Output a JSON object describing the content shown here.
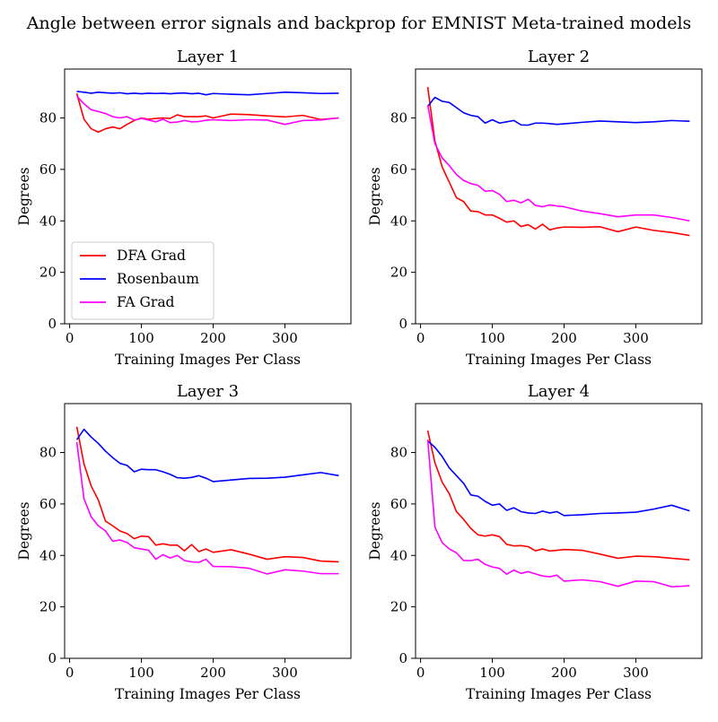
{
  "figure": {
    "suptitle": "Angle between error signals and backprop for EMNIST Meta-trained models"
  },
  "colors": {
    "DFA Grad": "#ff0000",
    "Rosenbaum": "#0000ff",
    "FA Grad": "#ff00ff"
  },
  "chart_data": [
    {
      "type": "line",
      "title": "Layer 1",
      "xlabel": "Training Images Per Class",
      "ylabel": "Degrees",
      "xlim": [
        -7,
        392
      ],
      "ylim": [
        0,
        99
      ],
      "xticks": [
        0,
        100,
        200,
        300
      ],
      "yticks": [
        0,
        20,
        40,
        60,
        80
      ],
      "grid": false,
      "legend": {
        "show": true,
        "placement": "lower-left"
      },
      "series": [
        {
          "name": "DFA Grad",
          "x": [
            10,
            20,
            30,
            40,
            50,
            60,
            70,
            80,
            90,
            100,
            110,
            120,
            130,
            140,
            150,
            160,
            170,
            180,
            190,
            200,
            225,
            250,
            275,
            300,
            325,
            350,
            375
          ],
          "y": [
            89.5,
            79.5,
            75.8,
            74.5,
            75.8,
            76.5,
            75.8,
            77.5,
            79.0,
            80.0,
            79.5,
            79.8,
            80.0,
            79.8,
            81.2,
            80.5,
            80.5,
            80.5,
            80.8,
            80.0,
            81.5,
            81.3,
            80.8,
            80.4,
            81.0,
            79.4,
            80.0
          ]
        },
        {
          "name": "Rosenbaum",
          "x": [
            10,
            20,
            30,
            40,
            50,
            60,
            70,
            80,
            90,
            100,
            110,
            120,
            130,
            140,
            150,
            160,
            170,
            180,
            190,
            200,
            225,
            250,
            275,
            300,
            325,
            350,
            375
          ],
          "y": [
            90.3,
            90.0,
            89.6,
            90.0,
            89.8,
            89.6,
            89.8,
            89.4,
            89.6,
            89.4,
            89.6,
            89.5,
            89.6,
            89.4,
            89.6,
            89.7,
            89.4,
            89.6,
            89.0,
            89.5,
            89.2,
            89.0,
            89.5,
            90.0,
            89.8,
            89.5,
            89.6
          ]
        },
        {
          "name": "FA Grad",
          "x": [
            10,
            20,
            30,
            40,
            50,
            60,
            70,
            80,
            90,
            100,
            110,
            120,
            130,
            140,
            150,
            160,
            170,
            180,
            190,
            200,
            225,
            250,
            275,
            300,
            325,
            350,
            375
          ],
          "y": [
            88.5,
            85.5,
            83.2,
            82.5,
            81.7,
            80.5,
            80.0,
            80.5,
            79.2,
            79.8,
            79.2,
            78.5,
            79.5,
            78.2,
            78.4,
            79.0,
            78.5,
            78.6,
            79.1,
            79.3,
            79.0,
            79.3,
            79.2,
            77.5,
            79.0,
            79.2,
            80.0
          ]
        }
      ]
    },
    {
      "type": "line",
      "title": "Layer 2",
      "xlabel": "Training Images Per Class",
      "ylabel": "Degrees",
      "xlim": [
        -7,
        392
      ],
      "ylim": [
        0,
        99
      ],
      "xticks": [
        0,
        100,
        200,
        300
      ],
      "yticks": [
        0,
        20,
        40,
        60,
        80
      ],
      "grid": false,
      "legend": {
        "show": false
      },
      "series": [
        {
          "name": "DFA Grad",
          "x": [
            10,
            20,
            30,
            40,
            50,
            60,
            70,
            80,
            90,
            100,
            110,
            120,
            130,
            140,
            150,
            160,
            170,
            180,
            190,
            200,
            225,
            250,
            275,
            300,
            325,
            350,
            375
          ],
          "y": [
            92.0,
            71.0,
            61.0,
            55.0,
            49.0,
            47.5,
            43.8,
            43.6,
            42.3,
            42.3,
            41.0,
            39.5,
            40.0,
            37.8,
            38.5,
            36.8,
            38.7,
            36.5,
            37.2,
            37.6,
            37.5,
            37.7,
            35.8,
            37.6,
            36.3,
            35.5,
            34.3
          ]
        },
        {
          "name": "Rosenbaum",
          "x": [
            10,
            20,
            30,
            40,
            50,
            60,
            70,
            80,
            90,
            100,
            110,
            120,
            130,
            140,
            150,
            160,
            170,
            180,
            190,
            200,
            225,
            250,
            275,
            300,
            325,
            350,
            375
          ],
          "y": [
            84.5,
            88.0,
            86.5,
            86.0,
            84.0,
            82.0,
            81.0,
            80.5,
            78.0,
            79.3,
            78.0,
            78.5,
            79.0,
            77.3,
            77.2,
            78.0,
            78.0,
            77.8,
            77.5,
            77.7,
            78.3,
            78.8,
            78.5,
            78.2,
            78.5,
            79.0,
            78.7
          ]
        },
        {
          "name": "FA Grad",
          "x": [
            10,
            20,
            30,
            40,
            50,
            60,
            70,
            80,
            90,
            100,
            110,
            120,
            130,
            140,
            150,
            160,
            170,
            180,
            190,
            200,
            225,
            250,
            275,
            300,
            325,
            350,
            375
          ],
          "y": [
            85.0,
            70.0,
            64.5,
            61.5,
            58.0,
            55.7,
            54.5,
            53.8,
            51.5,
            51.8,
            50.3,
            47.5,
            48.0,
            47.0,
            48.4,
            46.0,
            45.5,
            46.2,
            45.8,
            45.5,
            43.8,
            42.8,
            41.6,
            42.3,
            42.3,
            41.3,
            40.0
          ]
        }
      ]
    },
    {
      "type": "line",
      "title": "Layer 3",
      "xlabel": "Training Images Per Class",
      "ylabel": "Degrees",
      "xlim": [
        -7,
        392
      ],
      "ylim": [
        0,
        99
      ],
      "xticks": [
        0,
        100,
        200,
        300
      ],
      "yticks": [
        0,
        20,
        40,
        60,
        80
      ],
      "grid": false,
      "legend": {
        "show": false
      },
      "series": [
        {
          "name": "DFA Grad",
          "x": [
            10,
            20,
            30,
            40,
            50,
            60,
            70,
            80,
            90,
            100,
            110,
            120,
            130,
            140,
            150,
            160,
            170,
            180,
            190,
            200,
            225,
            250,
            275,
            300,
            325,
            350,
            375
          ],
          "y": [
            90.0,
            75.5,
            67.0,
            61.5,
            53.3,
            51.5,
            49.5,
            48.5,
            46.5,
            47.5,
            47.3,
            44.0,
            44.5,
            44.0,
            44.0,
            41.8,
            44.2,
            41.5,
            42.5,
            41.2,
            42.2,
            40.5,
            38.5,
            39.5,
            39.2,
            37.8,
            37.5
          ]
        },
        {
          "name": "Rosenbaum",
          "x": [
            10,
            20,
            30,
            40,
            50,
            60,
            70,
            80,
            90,
            100,
            110,
            120,
            130,
            140,
            150,
            160,
            170,
            180,
            190,
            200,
            225,
            250,
            275,
            300,
            325,
            350,
            375
          ],
          "y": [
            85.0,
            89.0,
            86.0,
            83.5,
            80.5,
            78.0,
            75.8,
            75.0,
            72.5,
            73.5,
            73.3,
            73.3,
            72.5,
            71.5,
            70.2,
            70.0,
            70.3,
            71.0,
            70.0,
            68.7,
            69.3,
            69.9,
            70.0,
            70.4,
            71.3,
            72.2,
            71.0
          ]
        },
        {
          "name": "FA Grad",
          "x": [
            10,
            20,
            30,
            40,
            50,
            60,
            70,
            80,
            90,
            100,
            110,
            120,
            130,
            140,
            150,
            160,
            170,
            180,
            190,
            200,
            225,
            250,
            275,
            300,
            325,
            350,
            375
          ],
          "y": [
            84.0,
            62.0,
            55.0,
            51.5,
            49.5,
            45.5,
            46.0,
            45.0,
            43.0,
            42.5,
            42.0,
            38.5,
            40.3,
            39.0,
            40.0,
            38.0,
            37.5,
            37.3,
            38.5,
            35.7,
            35.6,
            35.0,
            32.8,
            34.4,
            33.9,
            32.9,
            32.9
          ]
        }
      ]
    },
    {
      "type": "line",
      "title": "Layer 4",
      "xlabel": "Training Images Per Class",
      "ylabel": "Degrees",
      "xlim": [
        -7,
        392
      ],
      "ylim": [
        0,
        99
      ],
      "xticks": [
        0,
        100,
        200,
        300
      ],
      "yticks": [
        0,
        20,
        40,
        60,
        80
      ],
      "grid": false,
      "legend": {
        "show": false
      },
      "series": [
        {
          "name": "DFA Grad",
          "x": [
            10,
            20,
            30,
            40,
            50,
            60,
            70,
            80,
            90,
            100,
            110,
            120,
            130,
            140,
            150,
            160,
            170,
            180,
            190,
            200,
            225,
            250,
            275,
            300,
            325,
            350,
            375
          ],
          "y": [
            88.5,
            76.0,
            68.5,
            64.0,
            57.0,
            54.0,
            50.5,
            48.0,
            47.5,
            48.0,
            47.3,
            44.3,
            43.7,
            43.8,
            43.4,
            41.8,
            42.5,
            41.7,
            42.0,
            42.3,
            42.0,
            40.5,
            38.9,
            39.7,
            39.5,
            38.9,
            38.3
          ]
        },
        {
          "name": "Rosenbaum",
          "x": [
            10,
            20,
            30,
            40,
            50,
            60,
            70,
            80,
            90,
            100,
            110,
            120,
            130,
            140,
            150,
            160,
            170,
            180,
            190,
            200,
            225,
            250,
            275,
            300,
            325,
            350,
            375
          ],
          "y": [
            84.5,
            82.0,
            78.5,
            74.0,
            71.0,
            68.0,
            63.5,
            63.0,
            61.0,
            59.5,
            60.0,
            57.5,
            58.5,
            57.0,
            56.5,
            56.3,
            57.2,
            56.5,
            57.0,
            55.5,
            55.8,
            56.3,
            56.5,
            56.8,
            58.0,
            59.5,
            57.3
          ]
        },
        {
          "name": "FA Grad",
          "x": [
            10,
            20,
            30,
            40,
            50,
            60,
            70,
            80,
            90,
            100,
            110,
            120,
            130,
            140,
            150,
            160,
            170,
            180,
            190,
            200,
            225,
            250,
            275,
            300,
            325,
            350,
            375
          ],
          "y": [
            85.0,
            51.0,
            45.0,
            42.5,
            41.0,
            38.0,
            38.0,
            38.5,
            36.5,
            35.5,
            35.0,
            32.7,
            34.3,
            33.0,
            33.7,
            32.8,
            32.0,
            31.7,
            32.3,
            30.0,
            30.5,
            29.8,
            28.0,
            30.0,
            29.8,
            27.8,
            28.2
          ]
        }
      ]
    }
  ]
}
